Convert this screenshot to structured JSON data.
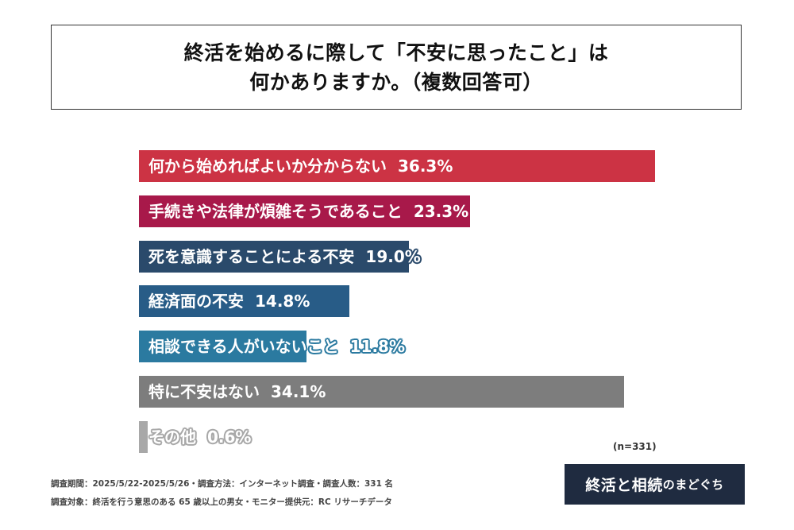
{
  "title": {
    "line1": "終活を始めるに際して「不安に思ったこと」は",
    "line2": "何かありますか。（複数回答可）"
  },
  "chart_data": {
    "type": "bar",
    "orientation": "horizontal",
    "categories": [
      "何から始めればよいか分からない",
      "手続きや法律が煩雑そうであること",
      "死を意識することによる不安",
      "経済面の不安",
      "相談できる人がいないこと",
      "特に不安はない",
      "その他"
    ],
    "values": [
      36.3,
      23.3,
      19.0,
      14.8,
      11.8,
      34.1,
      0.6
    ],
    "value_labels": [
      "36.3%",
      "23.3%",
      "19.0%",
      "14.8%",
      "11.8%",
      "34.1%",
      "0.6%"
    ],
    "colors": [
      "#cc3344",
      "#a8194a",
      "#2a4a6b",
      "#285c87",
      "#2b7aa0",
      "#7d7d7d",
      "#a8a8a8"
    ],
    "unit": "%",
    "sample_size_label": "(n=331)"
  },
  "footer": {
    "line1": "調査期間：2025/5/22-2025/5/26・調査方法：インターネット調査・調査人数：331 名",
    "line2": "調査対象：終活を行う意思のある 65 歳以上の男女・モニター提供元：RC リサーチデータ"
  },
  "logo": {
    "main": "終活と相続",
    "sub": "のまどぐち"
  }
}
